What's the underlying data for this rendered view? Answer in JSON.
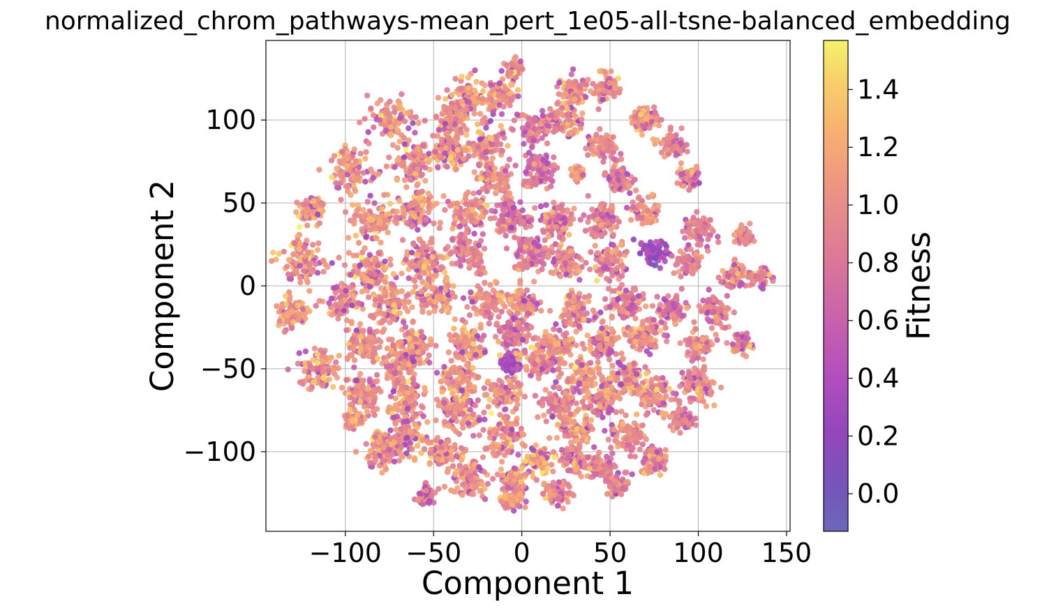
{
  "chart_data": {
    "type": "scatter",
    "title": "normalized_chrom_pathways-mean_pert_1e05-all-tsne-balanced_embedding",
    "xlabel": "Component 1",
    "ylabel": "Component 2",
    "xlim": [
      -145,
      152
    ],
    "ylim": [
      -148,
      148
    ],
    "xticks": [
      -100,
      -50,
      0,
      50,
      100,
      150
    ],
    "xtick_labels": [
      "−100",
      "−50",
      "0",
      "50",
      "100",
      "150"
    ],
    "yticks": [
      -100,
      -50,
      0,
      50,
      100
    ],
    "ytick_labels": [
      "−100",
      "−50",
      "0",
      "50",
      "100"
    ],
    "grid": true,
    "colorbar": {
      "label": "Fitness",
      "cmap": "plasma",
      "range": [
        -0.13,
        1.57
      ],
      "ticks": [
        0.0,
        0.2,
        0.4,
        0.6,
        0.8,
        1.0,
        1.2,
        1.4
      ],
      "tick_labels": [
        "0.0",
        "0.2",
        "0.4",
        "0.6",
        "0.8",
        "1.0",
        "1.2",
        "1.4"
      ]
    },
    "clusters": [
      {
        "x": 32,
        "y": 68,
        "fitness": 1.1,
        "spread": 2
      },
      {
        "x": -30,
        "y": 112,
        "fitness": 1.05,
        "spread": 6
      },
      {
        "x": -5,
        "y": 130,
        "fitness": 1.0,
        "spread": 3
      },
      {
        "x": -12,
        "y": 115,
        "fitness": 1.05,
        "spread": 4
      },
      {
        "x": 28,
        "y": 118,
        "fitness": 1.0,
        "spread": 4
      },
      {
        "x": 48,
        "y": 120,
        "fitness": 1.05,
        "spread": 4
      },
      {
        "x": 70,
        "y": 100,
        "fitness": 1.0,
        "spread": 4
      },
      {
        "x": -40,
        "y": 100,
        "fitness": 1.05,
        "spread": 5
      },
      {
        "x": -75,
        "y": 100,
        "fitness": 1.05,
        "spread": 6
      },
      {
        "x": -20,
        "y": 85,
        "fitness": 1.05,
        "spread": 5
      },
      {
        "x": 5,
        "y": 95,
        "fitness": 0.85,
        "spread": 5
      },
      {
        "x": 25,
        "y": 100,
        "fitness": 1.0,
        "spread": 5
      },
      {
        "x": 45,
        "y": 85,
        "fitness": 1.0,
        "spread": 4
      },
      {
        "x": 85,
        "y": 85,
        "fitness": 0.9,
        "spread": 4
      },
      {
        "x": -98,
        "y": 70,
        "fitness": 1.05,
        "spread": 6
      },
      {
        "x": -60,
        "y": 75,
        "fitness": 1.05,
        "spread": 6
      },
      {
        "x": -40,
        "y": 80,
        "fitness": 1.05,
        "spread": 5
      },
      {
        "x": -15,
        "y": 65,
        "fitness": 1.0,
        "spread": 5
      },
      {
        "x": 10,
        "y": 70,
        "fitness": 0.8,
        "spread": 5
      },
      {
        "x": 55,
        "y": 65,
        "fitness": 0.9,
        "spread": 4
      },
      {
        "x": 95,
        "y": 65,
        "fitness": 1.0,
        "spread": 3
      },
      {
        "x": -120,
        "y": 45,
        "fitness": 1.05,
        "spread": 4
      },
      {
        "x": -85,
        "y": 40,
        "fitness": 1.05,
        "spread": 6
      },
      {
        "x": -60,
        "y": 45,
        "fitness": 1.05,
        "spread": 6
      },
      {
        "x": -30,
        "y": 45,
        "fitness": 1.0,
        "spread": 6
      },
      {
        "x": -5,
        "y": 40,
        "fitness": 0.8,
        "spread": 5
      },
      {
        "x": 20,
        "y": 40,
        "fitness": 1.0,
        "spread": 5
      },
      {
        "x": 45,
        "y": 40,
        "fitness": 0.9,
        "spread": 5
      },
      {
        "x": 70,
        "y": 45,
        "fitness": 1.0,
        "spread": 4
      },
      {
        "x": 100,
        "y": 35,
        "fitness": 0.9,
        "spread": 4
      },
      {
        "x": 125,
        "y": 30,
        "fitness": 1.0,
        "spread": 3
      },
      {
        "x": -125,
        "y": 15,
        "fitness": 1.05,
        "spread": 6
      },
      {
        "x": -85,
        "y": 10,
        "fitness": 1.05,
        "spread": 6
      },
      {
        "x": -55,
        "y": 15,
        "fitness": 1.05,
        "spread": 6
      },
      {
        "x": -30,
        "y": 20,
        "fitness": 0.9,
        "spread": 5
      },
      {
        "x": 5,
        "y": 20,
        "fitness": 0.85,
        "spread": 5
      },
      {
        "x": 25,
        "y": 15,
        "fitness": 1.0,
        "spread": 5
      },
      {
        "x": 50,
        "y": 15,
        "fitness": 0.9,
        "spread": 5
      },
      {
        "x": 75,
        "y": 20,
        "fitness": 0.3,
        "spread": 4
      },
      {
        "x": 95,
        "y": 15,
        "fitness": 0.9,
        "spread": 4
      },
      {
        "x": 120,
        "y": 5,
        "fitness": 1.0,
        "spread": 4
      },
      {
        "x": 135,
        "y": 5,
        "fitness": 1.0,
        "spread": 3
      },
      {
        "x": -130,
        "y": -15,
        "fitness": 1.05,
        "spread": 5
      },
      {
        "x": -100,
        "y": -10,
        "fitness": 1.0,
        "spread": 5
      },
      {
        "x": -75,
        "y": -10,
        "fitness": 1.05,
        "spread": 6
      },
      {
        "x": -50,
        "y": -5,
        "fitness": 1.05,
        "spread": 6
      },
      {
        "x": -20,
        "y": -10,
        "fitness": 1.0,
        "spread": 5
      },
      {
        "x": 0,
        "y": -10,
        "fitness": 1.05,
        "spread": 5
      },
      {
        "x": 30,
        "y": -15,
        "fitness": 1.0,
        "spread": 5
      },
      {
        "x": 60,
        "y": -10,
        "fitness": 0.9,
        "spread": 5
      },
      {
        "x": 85,
        "y": -15,
        "fitness": 0.9,
        "spread": 4
      },
      {
        "x": 110,
        "y": -15,
        "fitness": 0.9,
        "spread": 4
      },
      {
        "x": -90,
        "y": -35,
        "fitness": 1.0,
        "spread": 5
      },
      {
        "x": -60,
        "y": -35,
        "fitness": 1.05,
        "spread": 5
      },
      {
        "x": -30,
        "y": -35,
        "fitness": 1.05,
        "spread": 5
      },
      {
        "x": -5,
        "y": -30,
        "fitness": 0.8,
        "spread": 5
      },
      {
        "x": 20,
        "y": -35,
        "fitness": 1.05,
        "spread": 5
      },
      {
        "x": 45,
        "y": -35,
        "fitness": 1.0,
        "spread": 5
      },
      {
        "x": 70,
        "y": -30,
        "fitness": 1.0,
        "spread": 5
      },
      {
        "x": 100,
        "y": -35,
        "fitness": 0.9,
        "spread": 4
      },
      {
        "x": 125,
        "y": -35,
        "fitness": 1.0,
        "spread": 3
      },
      {
        "x": -115,
        "y": -50,
        "fitness": 1.05,
        "spread": 6
      },
      {
        "x": -70,
        "y": -45,
        "fitness": 1.05,
        "spread": 6
      },
      {
        "x": -35,
        "y": -55,
        "fitness": 1.05,
        "spread": 5
      },
      {
        "x": -7,
        "y": -47,
        "fitness": 0.4,
        "spread": 3
      },
      {
        "x": 10,
        "y": -45,
        "fitness": 1.0,
        "spread": 5
      },
      {
        "x": 35,
        "y": -55,
        "fitness": 1.05,
        "spread": 5
      },
      {
        "x": 60,
        "y": -55,
        "fitness": 1.05,
        "spread": 5
      },
      {
        "x": 100,
        "y": -60,
        "fitness": 1.0,
        "spread": 5
      },
      {
        "x": -90,
        "y": -65,
        "fitness": 1.0,
        "spread": 5
      },
      {
        "x": -65,
        "y": -65,
        "fitness": 1.05,
        "spread": 6
      },
      {
        "x": -35,
        "y": -75,
        "fitness": 1.05,
        "spread": 6
      },
      {
        "x": -10,
        "y": -65,
        "fitness": 1.0,
        "spread": 5
      },
      {
        "x": 20,
        "y": -70,
        "fitness": 0.9,
        "spread": 5
      },
      {
        "x": 45,
        "y": -70,
        "fitness": 1.0,
        "spread": 5
      },
      {
        "x": 75,
        "y": -65,
        "fitness": 1.0,
        "spread": 5
      },
      {
        "x": -95,
        "y": -80,
        "fitness": 1.0,
        "spread": 3
      },
      {
        "x": -65,
        "y": -90,
        "fitness": 1.05,
        "spread": 6
      },
      {
        "x": -10,
        "y": -90,
        "fitness": 1.05,
        "spread": 6
      },
      {
        "x": 30,
        "y": -85,
        "fitness": 1.05,
        "spread": 5
      },
      {
        "x": 60,
        "y": -90,
        "fitness": 1.0,
        "spread": 5
      },
      {
        "x": 90,
        "y": -80,
        "fitness": 0.9,
        "spread": 4
      },
      {
        "x": -80,
        "y": -100,
        "fitness": 1.05,
        "spread": 5
      },
      {
        "x": -45,
        "y": -100,
        "fitness": 1.0,
        "spread": 4
      },
      {
        "x": 10,
        "y": -105,
        "fitness": 1.2,
        "spread": 4
      },
      {
        "x": 30,
        "y": -105,
        "fitness": 1.0,
        "spread": 4
      },
      {
        "x": 45,
        "y": -110,
        "fitness": 0.9,
        "spread": 4
      },
      {
        "x": 75,
        "y": -105,
        "fitness": 1.0,
        "spread": 4
      },
      {
        "x": -30,
        "y": -115,
        "fitness": 1.05,
        "spread": 6
      },
      {
        "x": -5,
        "y": -118,
        "fitness": 1.0,
        "spread": 4
      },
      {
        "x": 20,
        "y": -125,
        "fitness": 1.0,
        "spread": 4
      },
      {
        "x": 55,
        "y": -120,
        "fitness": 0.9,
        "spread": 3
      },
      {
        "x": -55,
        "y": -127,
        "fitness": 0.8,
        "spread": 3
      },
      {
        "x": -5,
        "y": -130,
        "fitness": 1.05,
        "spread": 3
      }
    ]
  }
}
